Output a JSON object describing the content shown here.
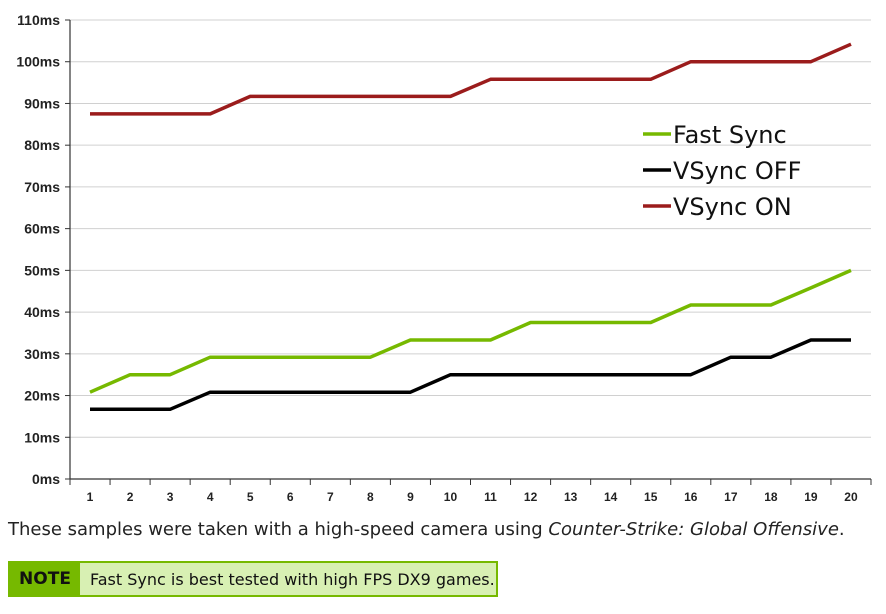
{
  "chart_data": {
    "type": "line",
    "x": [
      1,
      2,
      3,
      4,
      5,
      6,
      7,
      8,
      9,
      10,
      11,
      12,
      13,
      14,
      15,
      16,
      17,
      18,
      19,
      20
    ],
    "y_ticks": [
      "0ms",
      "10ms",
      "20ms",
      "30ms",
      "40ms",
      "50ms",
      "60ms",
      "70ms",
      "80ms",
      "90ms",
      "100ms",
      "110ms"
    ],
    "ylim": [
      0,
      110
    ],
    "grid": "horizontal",
    "legend_position": "right",
    "series": [
      {
        "name": "Fast Sync",
        "color": "#76b900",
        "values": [
          20.8,
          25,
          25,
          29.2,
          29.2,
          29.2,
          29.2,
          29.2,
          33.3,
          33.3,
          33.3,
          37.5,
          37.5,
          37.5,
          37.5,
          41.7,
          41.7,
          41.7,
          45.8,
          50
        ]
      },
      {
        "name": "VSync OFF",
        "color": "#000000",
        "values": [
          16.7,
          16.7,
          16.7,
          20.8,
          20.8,
          20.8,
          20.8,
          20.8,
          20.8,
          25,
          25,
          25,
          25,
          25,
          25,
          25,
          29.2,
          29.2,
          33.3,
          33.3
        ]
      },
      {
        "name": "VSync ON",
        "color": "#9b1c1c",
        "values": [
          87.5,
          87.5,
          87.5,
          87.5,
          91.7,
          91.7,
          91.7,
          91.7,
          91.7,
          91.7,
          95.8,
          95.8,
          95.8,
          95.8,
          95.8,
          100,
          100,
          100,
          100,
          104.2
        ]
      }
    ]
  },
  "caption": {
    "prefix": "These samples were taken with a high-speed camera using ",
    "game": "Counter-Strike: Global Offensive",
    "suffix": "."
  },
  "note": {
    "label": "NOTE",
    "text": "Fast Sync is best tested with high FPS DX9 games."
  }
}
